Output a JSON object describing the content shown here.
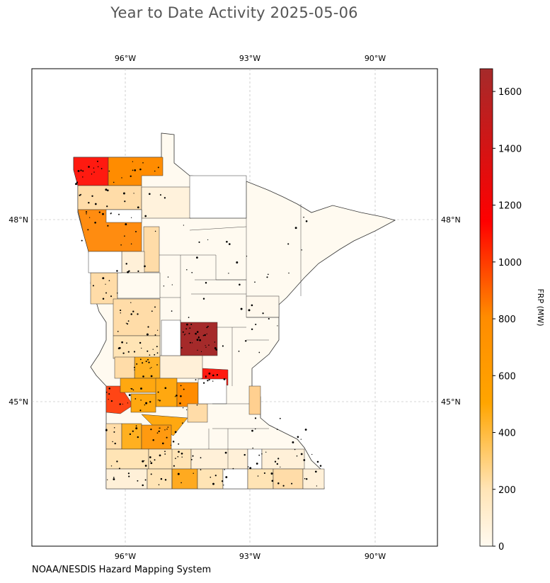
{
  "title": "Year to Date Activity 2025-05-06",
  "credit": "NOAA/NESDIS Hazard Mapping System",
  "map": {
    "region": "Minnesota counties",
    "lon_ticks": [
      "96°W",
      "93°W",
      "90°W"
    ],
    "lat_ticks": [
      "48°N",
      "45°N"
    ],
    "grid": true,
    "fire_points_color": "#000000",
    "county_outline_color": "#333333"
  },
  "colorbar": {
    "label": "FRP (MW)",
    "ticks": [
      "0",
      "200",
      "400",
      "600",
      "800",
      "1000",
      "1200",
      "1400",
      "1600"
    ],
    "max": 1680,
    "colors": [
      "#fffaf0",
      "#ffe4b5",
      "#ffa500",
      "#ff8c00",
      "#ff0000",
      "#a52a2a"
    ]
  }
}
